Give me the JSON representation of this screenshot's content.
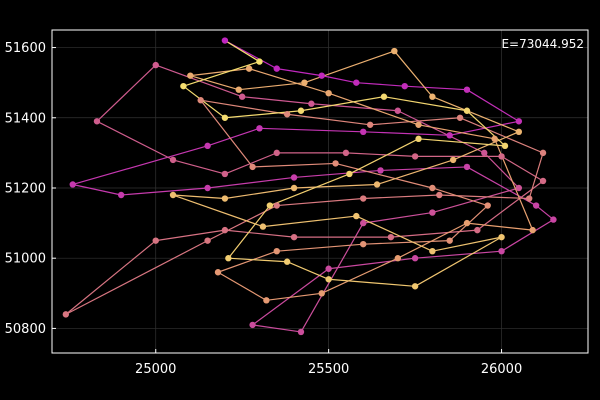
{
  "chart_data": {
    "type": "line",
    "annotation": "E=73044.952",
    "xlim": [
      24700,
      26250
    ],
    "ylim": [
      50730,
      51650
    ],
    "x_ticks": [
      25000,
      25500,
      26000
    ],
    "y_ticks": [
      50800,
      51000,
      51200,
      51400,
      51600
    ],
    "grid": true,
    "background": "#000000",
    "axis_color": "#ffffff",
    "colormap": [
      "#c026c0",
      "#d0608a",
      "#e8a070",
      "#f5e070"
    ],
    "tour": [
      [
        25200,
        51620
      ],
      [
        25350,
        51540
      ],
      [
        25480,
        51520
      ],
      [
        25580,
        51500
      ],
      [
        25720,
        51490
      ],
      [
        25900,
        51480
      ],
      [
        26050,
        51390
      ],
      [
        25850,
        51350
      ],
      [
        25600,
        51360
      ],
      [
        25300,
        51370
      ],
      [
        25150,
        51320
      ],
      [
        24760,
        51210
      ],
      [
        24900,
        51180
      ],
      [
        25150,
        51200
      ],
      [
        25400,
        51230
      ],
      [
        25650,
        51250
      ],
      [
        25900,
        51260
      ],
      [
        26100,
        51150
      ],
      [
        26150,
        51110
      ],
      [
        26000,
        51020
      ],
      [
        25750,
        51000
      ],
      [
        25500,
        50970
      ],
      [
        25280,
        50810
      ],
      [
        25420,
        50790
      ],
      [
        25600,
        51100
      ],
      [
        25800,
        51130
      ],
      [
        26050,
        51200
      ],
      [
        25950,
        51300
      ],
      [
        25700,
        51420
      ],
      [
        25450,
        51440
      ],
      [
        25250,
        51460
      ],
      [
        25000,
        51550
      ],
      [
        24830,
        51390
      ],
      [
        25050,
        51280
      ],
      [
        25200,
        51240
      ],
      [
        25350,
        51300
      ],
      [
        25550,
        51300
      ],
      [
        25750,
        51290
      ],
      [
        26000,
        51290
      ],
      [
        26120,
        51220
      ],
      [
        25930,
        51080
      ],
      [
        25680,
        51060
      ],
      [
        25400,
        51060
      ],
      [
        25200,
        51080
      ],
      [
        25000,
        51050
      ],
      [
        24740,
        50840
      ],
      [
        25150,
        51050
      ],
      [
        25350,
        51150
      ],
      [
        25600,
        51170
      ],
      [
        25820,
        51180
      ],
      [
        26080,
        51170
      ],
      [
        26120,
        51300
      ],
      [
        25880,
        51400
      ],
      [
        25620,
        51380
      ],
      [
        25380,
        51410
      ],
      [
        25130,
        51450
      ],
      [
        25280,
        51260
      ],
      [
        25520,
        51270
      ],
      [
        25800,
        51200
      ],
      [
        25960,
        51150
      ],
      [
        25850,
        51050
      ],
      [
        25600,
        51040
      ],
      [
        25350,
        51020
      ],
      [
        25180,
        50960
      ],
      [
        25320,
        50880
      ],
      [
        25480,
        50900
      ],
      [
        25700,
        51000
      ],
      [
        25900,
        51100
      ],
      [
        26090,
        51080
      ],
      [
        25980,
        51340
      ],
      [
        25760,
        51380
      ],
      [
        25500,
        51470
      ],
      [
        25270,
        51540
      ],
      [
        25100,
        51520
      ],
      [
        25240,
        51480
      ],
      [
        25430,
        51500
      ],
      [
        25690,
        51590
      ],
      [
        25800,
        51460
      ],
      [
        26050,
        51360
      ],
      [
        25860,
        51280
      ],
      [
        25640,
        51210
      ],
      [
        25400,
        51200
      ],
      [
        25200,
        51170
      ],
      [
        25050,
        51180
      ],
      [
        25310,
        51090
      ],
      [
        25580,
        51120
      ],
      [
        25800,
        51020
      ],
      [
        26000,
        51060
      ],
      [
        25750,
        50920
      ],
      [
        25500,
        50940
      ],
      [
        25380,
        50990
      ],
      [
        25210,
        51000
      ],
      [
        25330,
        51150
      ],
      [
        25560,
        51240
      ],
      [
        25760,
        51340
      ],
      [
        26010,
        51320
      ],
      [
        25900,
        51420
      ],
      [
        25660,
        51460
      ],
      [
        25420,
        51420
      ],
      [
        25200,
        51400
      ],
      [
        25080,
        51490
      ],
      [
        25300,
        51560
      ]
    ]
  }
}
